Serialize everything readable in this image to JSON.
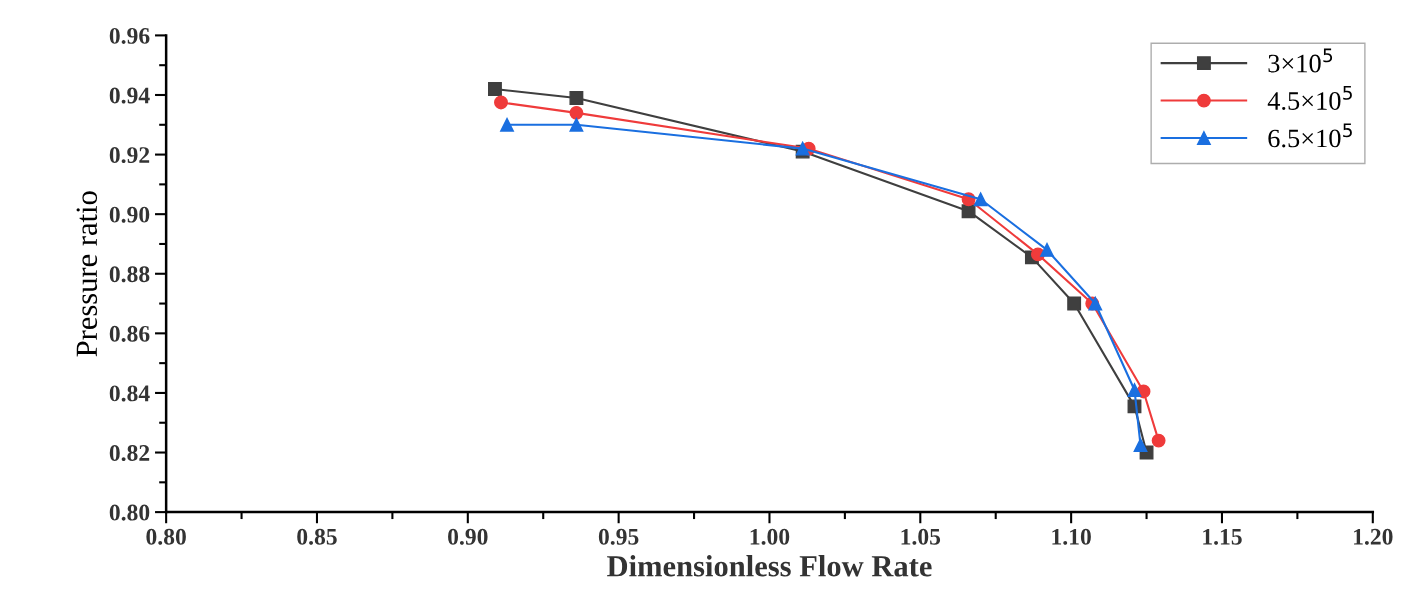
{
  "chart_data": {
    "type": "line",
    "xlabel": "Dimensionless Flow Rate",
    "ylabel": "Pressure ratio",
    "xlim": [
      0.8,
      1.2
    ],
    "xticks": [
      {
        "value": 0.8,
        "label": "0.80"
      },
      {
        "value": 0.85,
        "label": "0.85"
      },
      {
        "value": 0.9,
        "label": "0.90"
      },
      {
        "value": 0.95,
        "label": "0.95"
      },
      {
        "value": 1.0,
        "label": "1.00"
      },
      {
        "value": 1.05,
        "label": "1.05"
      },
      {
        "value": 1.1,
        "label": "1.10"
      },
      {
        "value": 1.15,
        "label": "1.15"
      },
      {
        "value": 1.2,
        "label": "1.20"
      }
    ],
    "ylim": [
      0.8,
      0.96
    ],
    "yticks": [
      {
        "value": 0.8,
        "label": "0.80"
      },
      {
        "value": 0.82,
        "label": "0.82"
      },
      {
        "value": 0.84,
        "label": "0.84"
      },
      {
        "value": 0.86,
        "label": "0.86"
      },
      {
        "value": 0.88,
        "label": "0.88"
      },
      {
        "value": 0.9,
        "label": "0.90"
      },
      {
        "value": 0.92,
        "label": "0.92"
      },
      {
        "value": 0.94,
        "label": "0.94"
      },
      {
        "value": 0.96,
        "label": "0.96"
      }
    ],
    "grid": false,
    "legend": "top right",
    "line_style": "solid",
    "series": [
      {
        "name": "3×10$^{5}$",
        "color": "#3f3f3f",
        "marker": "square",
        "x": [
          0.909,
          0.936,
          1.011,
          1.066,
          1.087,
          1.101,
          1.121,
          1.125
        ],
        "values": [
          0.942,
          0.939,
          0.921,
          0.901,
          0.8855,
          0.87,
          0.8355,
          0.82
        ]
      },
      {
        "name": "4.5×10$^{5}$",
        "color": "#ef3b3b",
        "marker": "circle",
        "x": [
          0.911,
          0.936,
          1.013,
          1.066,
          1.089,
          1.107,
          1.124,
          1.129
        ],
        "values": [
          0.9375,
          0.934,
          0.922,
          0.905,
          0.8865,
          0.87,
          0.8405,
          0.824
        ]
      },
      {
        "name": "6.5×10$^{5}$",
        "color": "#1a6fe0",
        "marker": "triangle",
        "x": [
          0.913,
          0.936,
          1.011,
          1.07,
          1.092,
          1.108,
          1.121,
          1.123
        ],
        "values": [
          0.93,
          0.93,
          0.922,
          0.905,
          0.888,
          0.87,
          0.841,
          0.8225
        ]
      }
    ]
  }
}
